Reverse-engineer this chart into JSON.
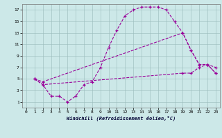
{
  "bg_color": "#cce8e8",
  "line_color": "#990099",
  "xlim": [
    -0.5,
    23.5
  ],
  "ylim": [
    0,
    18
  ],
  "xticks": [
    0,
    1,
    2,
    3,
    4,
    5,
    6,
    7,
    8,
    9,
    10,
    11,
    12,
    13,
    14,
    15,
    16,
    17,
    18,
    19,
    20,
    21,
    22,
    23
  ],
  "yticks": [
    1,
    3,
    5,
    7,
    9,
    11,
    13,
    15,
    17
  ],
  "xlabel": "Windchill (Refroidissement éolien,°C)",
  "line1_x": [
    1,
    2,
    3,
    4,
    5,
    6,
    7,
    8,
    9,
    10,
    11,
    12,
    13,
    14,
    15,
    16,
    17,
    18,
    19,
    20,
    21,
    22,
    23
  ],
  "line1_y": [
    5,
    4,
    2,
    2,
    1,
    2,
    4,
    4.5,
    7,
    10.5,
    13.5,
    16,
    17,
    17.5,
    17.5,
    17.5,
    17,
    15,
    13,
    10,
    7.5,
    7.5,
    6
  ],
  "line2_x": [
    1,
    2,
    19,
    20,
    21,
    22,
    23
  ],
  "line2_y": [
    5,
    4.5,
    13,
    10,
    7.5,
    7.5,
    7
  ],
  "line3_x": [
    1,
    2,
    19,
    20,
    21,
    22,
    23
  ],
  "line3_y": [
    5,
    4,
    6,
    6,
    7,
    7.5,
    6
  ]
}
